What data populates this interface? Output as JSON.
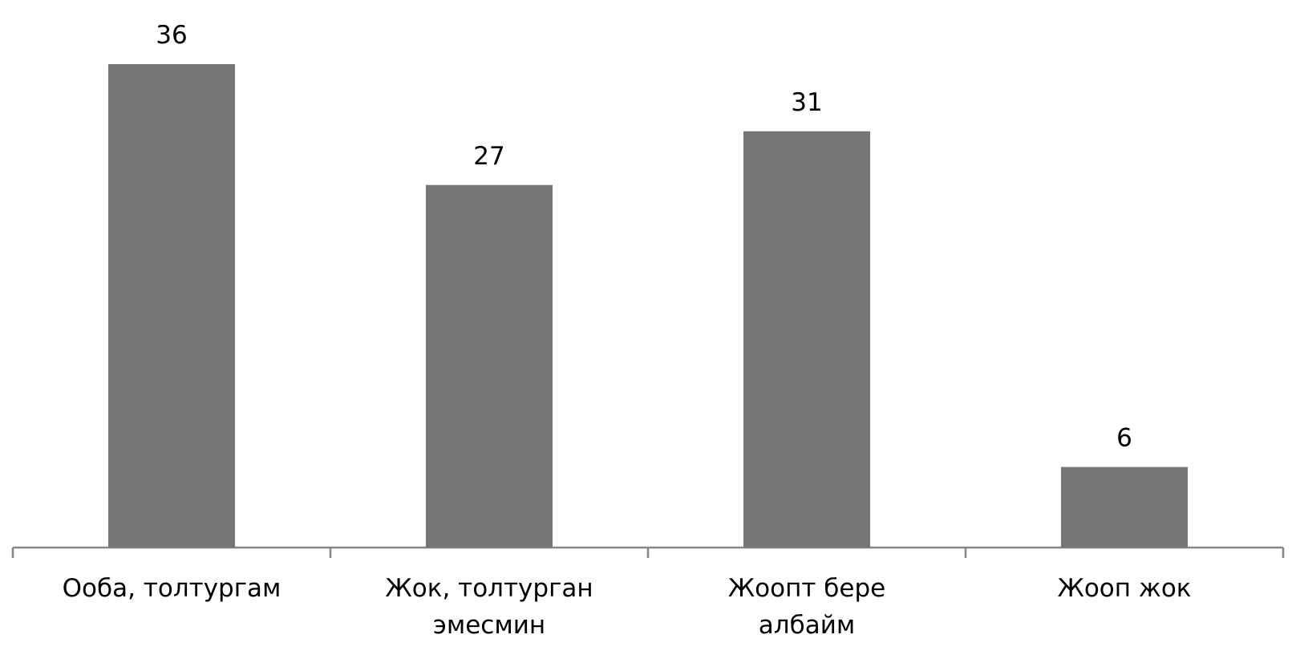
{
  "chart_data": {
    "type": "bar",
    "categories": [
      "Ооба, толтургам",
      "Жок, толтурган эмесмин",
      "Жоопт бере албайм",
      "Жооп жок"
    ],
    "values": [
      36,
      27,
      31,
      6
    ],
    "color": "#767676"
  }
}
